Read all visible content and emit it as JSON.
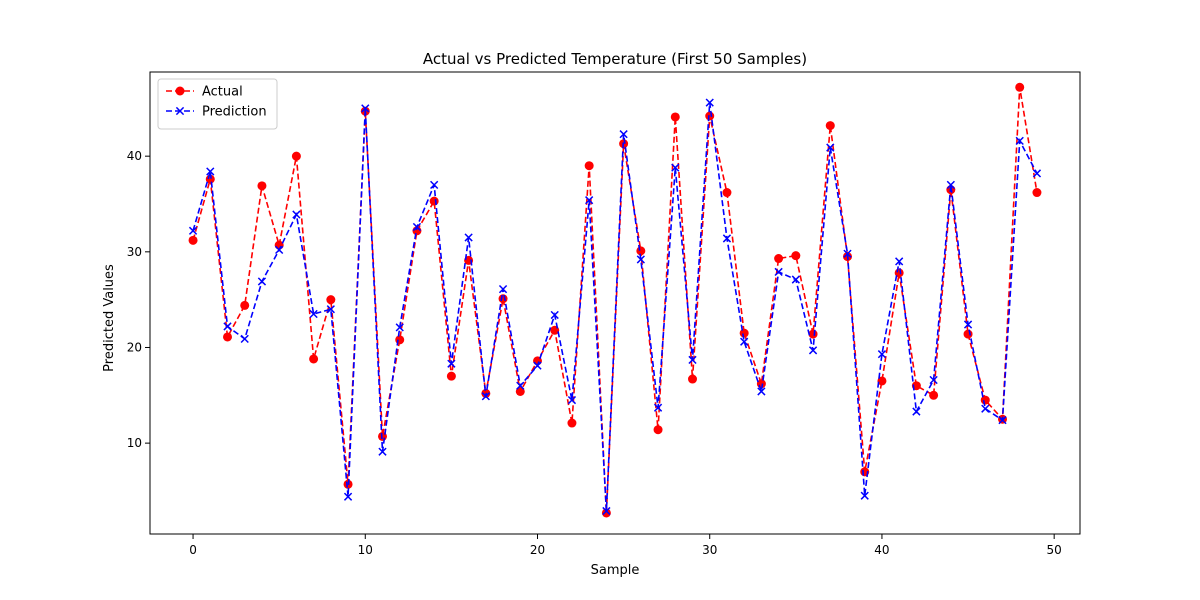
{
  "chart_data": {
    "type": "line",
    "title": "Actual vs Predicted Temperature (First 50 Samples)",
    "xlabel": "Sample",
    "ylabel": "Predicted Values",
    "xlim": [
      -2.5,
      51.5
    ],
    "ylim": [
      0.5,
      48.8
    ],
    "x_ticks": [
      0,
      10,
      20,
      30,
      40,
      50
    ],
    "y_ticks": [
      10,
      20,
      30,
      40
    ],
    "grid": false,
    "legend_position": "top-left",
    "x": [
      0,
      1,
      2,
      3,
      4,
      5,
      6,
      7,
      8,
      9,
      10,
      11,
      12,
      13,
      14,
      15,
      16,
      17,
      18,
      19,
      20,
      21,
      22,
      23,
      24,
      25,
      26,
      27,
      28,
      29,
      30,
      31,
      32,
      33,
      34,
      35,
      36,
      37,
      38,
      39,
      40,
      41,
      42,
      43,
      44,
      45,
      46,
      47,
      48,
      49
    ],
    "series": [
      {
        "name": "Actual",
        "color": "#ff0000",
        "marker": "circle",
        "line_style": "dashed",
        "values": [
          31.2,
          37.6,
          21.1,
          24.4,
          36.9,
          30.7,
          40.0,
          18.8,
          25.0,
          5.7,
          44.7,
          10.7,
          20.8,
          32.2,
          35.3,
          17.0,
          29.1,
          15.2,
          25.1,
          15.4,
          18.6,
          21.8,
          12.1,
          39.0,
          2.7,
          41.3,
          30.1,
          11.4,
          44.1,
          16.7,
          44.2,
          36.2,
          21.5,
          16.2,
          29.3,
          29.6,
          21.4,
          43.2,
          29.5,
          7.0,
          16.5,
          27.8,
          16.0,
          15.0,
          36.5,
          21.4,
          14.5,
          12.5,
          47.2,
          36.2
        ]
      },
      {
        "name": "Prediction",
        "color": "#0000ff",
        "marker": "x",
        "line_style": "dashed",
        "values": [
          32.2,
          38.4,
          22.2,
          20.9,
          26.9,
          30.2,
          33.9,
          23.5,
          24.0,
          4.4,
          45.0,
          9.1,
          22.1,
          32.6,
          37.0,
          18.3,
          31.5,
          14.9,
          26.1,
          16.0,
          18.1,
          23.4,
          14.5,
          35.4,
          2.9,
          42.3,
          29.2,
          13.7,
          38.8,
          18.7,
          45.6,
          31.4,
          20.6,
          15.4,
          27.9,
          27.1,
          19.7,
          40.9,
          29.8,
          4.5,
          19.3,
          29.0,
          13.3,
          16.6,
          37.0,
          22.4,
          13.6,
          12.4,
          41.6,
          38.2
        ]
      }
    ]
  }
}
